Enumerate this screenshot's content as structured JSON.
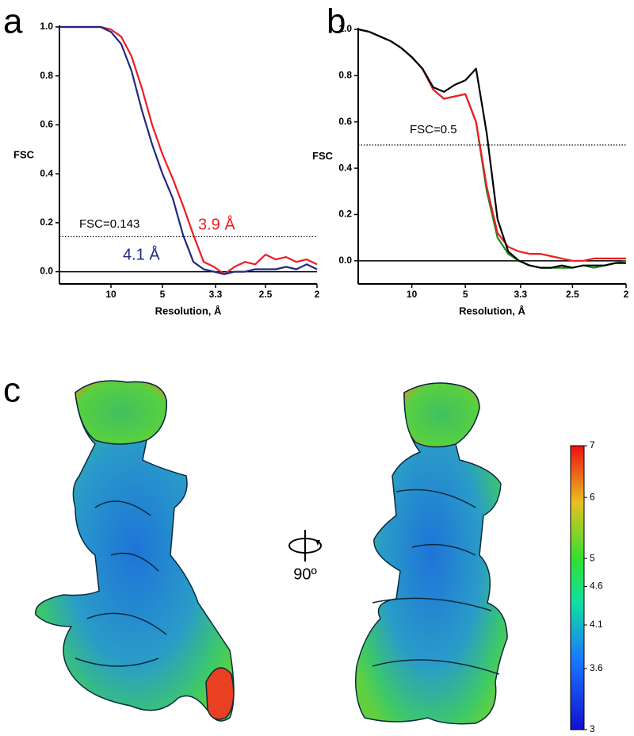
{
  "panel_labels": [
    "a",
    "b",
    "c"
  ],
  "rotation_label": "90º",
  "chart_data": [
    {
      "type": "line",
      "xlabel": "Resolution, Å",
      "ylabel": "FSC",
      "xlim": [
        0,
        0.5
      ],
      "ylim": [
        -0.05,
        1.0
      ],
      "xticks": [
        {
          "value": 0.1,
          "label": "10"
        },
        {
          "value": 0.2,
          "label": "5"
        },
        {
          "value": 0.303,
          "label": "3.3"
        },
        {
          "value": 0.4,
          "label": "2.5"
        },
        {
          "value": 0.5,
          "label": "2"
        }
      ],
      "yticks": [
        {
          "value": 0,
          "label": "0.0"
        },
        0.2,
        0.4,
        0.6,
        0.8,
        {
          "value": 1,
          "label": "1.0"
        }
      ],
      "hlines": [
        {
          "value": 0.143,
          "label": "FSC=0.143",
          "style": "dotted"
        },
        {
          "value": 0,
          "style": "solid"
        }
      ],
      "x": [
        0,
        0.02,
        0.04,
        0.06,
        0.08,
        0.1,
        0.12,
        0.14,
        0.16,
        0.18,
        0.2,
        0.22,
        0.24,
        0.26,
        0.28,
        0.3,
        0.32,
        0.34,
        0.36,
        0.38,
        0.4,
        0.42,
        0.44,
        0.46,
        0.48,
        0.5
      ],
      "series": [
        {
          "name": "3.9 Å",
          "color": "#ee1c24",
          "values": [
            1,
            1,
            1,
            1,
            1,
            0.99,
            0.96,
            0.88,
            0.75,
            0.6,
            0.48,
            0.38,
            0.27,
            0.15,
            0.04,
            0.02,
            -0.01,
            0.02,
            0.04,
            0.03,
            0.07,
            0.05,
            0.06,
            0.04,
            0.05,
            0.03
          ]
        },
        {
          "name": "4.1 Å",
          "color": "#1f2a80",
          "values": [
            1,
            1,
            1,
            1,
            1,
            0.98,
            0.93,
            0.82,
            0.66,
            0.52,
            0.4,
            0.3,
            0.15,
            0.04,
            0.01,
            0,
            -0.01,
            0,
            0,
            0.01,
            0.01,
            0.01,
            0.02,
            0.01,
            0.03,
            0.01
          ]
        }
      ]
    },
    {
      "type": "line",
      "xlabel": "Resolution, Å",
      "ylabel": "FSC",
      "xlim": [
        0,
        0.5
      ],
      "ylim": [
        -0.1,
        1.0
      ],
      "xticks": [
        {
          "value": 0.1,
          "label": "10"
        },
        {
          "value": 0.2,
          "label": "5"
        },
        {
          "value": 0.303,
          "label": "3.3"
        },
        {
          "value": 0.4,
          "label": "2.5"
        },
        {
          "value": 0.5,
          "label": "2"
        }
      ],
      "yticks": [
        {
          "value": 0,
          "label": "0.0"
        },
        0.2,
        0.4,
        0.6,
        0.8,
        {
          "value": 1,
          "label": "1.0"
        }
      ],
      "hlines": [
        {
          "value": 0.5,
          "label": "FSC=0.5",
          "style": "dotted"
        },
        {
          "value": 0,
          "style": "solid"
        }
      ],
      "x": [
        0,
        0.02,
        0.04,
        0.06,
        0.08,
        0.1,
        0.12,
        0.14,
        0.16,
        0.18,
        0.2,
        0.22,
        0.24,
        0.26,
        0.28,
        0.3,
        0.32,
        0.34,
        0.36,
        0.38,
        0.4,
        0.42,
        0.44,
        0.46,
        0.48,
        0.5
      ],
      "series": [
        {
          "color": "#1a8a1a",
          "values": [
            1,
            0.99,
            0.97,
            0.95,
            0.92,
            0.88,
            0.83,
            0.74,
            0.7,
            0.71,
            0.72,
            0.6,
            0.3,
            0.1,
            0.03,
            0,
            -0.02,
            -0.03,
            -0.03,
            -0.03,
            -0.03,
            -0.02,
            -0.03,
            -0.02,
            -0.01,
            0
          ]
        },
        {
          "color": "#ee1c24",
          "values": [
            1,
            0.99,
            0.97,
            0.95,
            0.92,
            0.88,
            0.83,
            0.74,
            0.7,
            0.71,
            0.72,
            0.6,
            0.32,
            0.12,
            0.06,
            0.04,
            0.03,
            0.03,
            0.02,
            0.01,
            0,
            0,
            0.01,
            0.01,
            0.01,
            0.01
          ]
        },
        {
          "color": "#000000",
          "values": [
            1,
            0.99,
            0.97,
            0.95,
            0.92,
            0.88,
            0.83,
            0.75,
            0.73,
            0.76,
            0.78,
            0.83,
            0.55,
            0.18,
            0.04,
            0,
            -0.02,
            -0.03,
            -0.03,
            -0.02,
            -0.03,
            -0.02,
            -0.02,
            -0.02,
            -0.01,
            -0.01
          ]
        }
      ]
    },
    {
      "type": "colorbar",
      "ylim": [
        3,
        7
      ],
      "log": true,
      "yticks": [
        7,
        6,
        5,
        4.6,
        4.1,
        3.6,
        3
      ]
    }
  ]
}
